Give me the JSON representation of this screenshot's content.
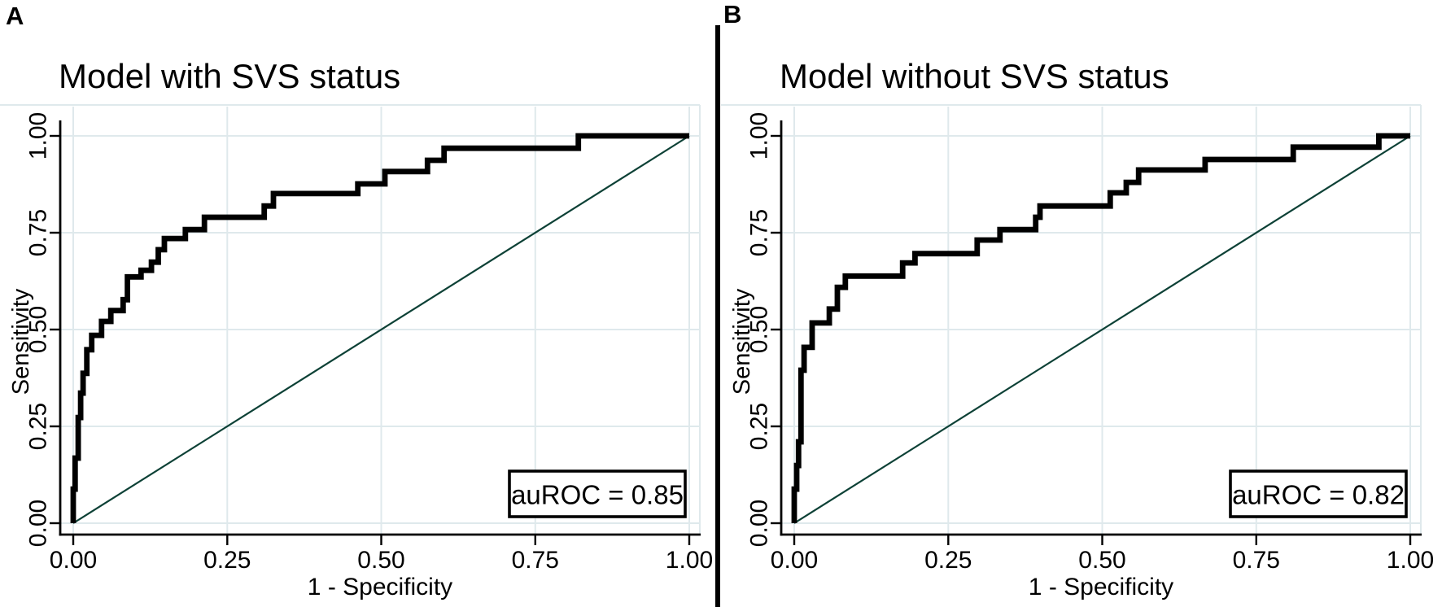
{
  "figure": {
    "background": "#ffffff",
    "panels": [
      {
        "letter": "A",
        "title": "Model with SVS status",
        "annotation": "auROC = 0.85"
      },
      {
        "letter": "B",
        "title": "Model without SVS status",
        "annotation": "auROC = 0.82"
      }
    ]
  },
  "colors": {
    "curve": "#000000",
    "reference_line": "#0d4136",
    "grid": "#dfe9ec",
    "axis": "#000000",
    "text": "#000000",
    "annotation_box_fill": "#ffffff",
    "annotation_box_border": "#000000",
    "background": "#ffffff"
  },
  "chart_data": [
    {
      "type": "line",
      "panel": "A",
      "title": "Model with SVS status",
      "xlabel": "1 - Specificity",
      "ylabel": "Sensitivity",
      "xlim": [
        0,
        1
      ],
      "ylim": [
        0,
        1
      ],
      "xtick_labels": [
        "0.00",
        "0.25",
        "0.50",
        "0.75",
        "1.00"
      ],
      "ytick_labels": [
        "0.00",
        "0.25",
        "0.50",
        "0.75",
        "1.00"
      ],
      "grid": true,
      "legend": "none",
      "annotation": "auROC = 0.85",
      "auROC": 0.85,
      "reference_line": {
        "from": [
          0,
          0
        ],
        "to": [
          1,
          1
        ]
      },
      "series": [
        {
          "name": "ROC curve",
          "points": [
            [
              0,
              0
            ],
            [
              0,
              0.088
            ],
            [
              0.003,
              0.088
            ],
            [
              0.003,
              0.168
            ],
            [
              0.008,
              0.168
            ],
            [
              0.008,
              0.273
            ],
            [
              0.012,
              0.273
            ],
            [
              0.012,
              0.336
            ],
            [
              0.016,
              0.336
            ],
            [
              0.016,
              0.387
            ],
            [
              0.022,
              0.387
            ],
            [
              0.022,
              0.448
            ],
            [
              0.03,
              0.448
            ],
            [
              0.03,
              0.485
            ],
            [
              0.046,
              0.485
            ],
            [
              0.046,
              0.521
            ],
            [
              0.061,
              0.521
            ],
            [
              0.061,
              0.549
            ],
            [
              0.081,
              0.549
            ],
            [
              0.081,
              0.577
            ],
            [
              0.088,
              0.577
            ],
            [
              0.088,
              0.636
            ],
            [
              0.11,
              0.636
            ],
            [
              0.11,
              0.653
            ],
            [
              0.127,
              0.653
            ],
            [
              0.127,
              0.674
            ],
            [
              0.138,
              0.674
            ],
            [
              0.138,
              0.706
            ],
            [
              0.148,
              0.706
            ],
            [
              0.148,
              0.735
            ],
            [
              0.182,
              0.735
            ],
            [
              0.182,
              0.758
            ],
            [
              0.213,
              0.758
            ],
            [
              0.213,
              0.79
            ],
            [
              0.31,
              0.79
            ],
            [
              0.31,
              0.819
            ],
            [
              0.325,
              0.819
            ],
            [
              0.325,
              0.851
            ],
            [
              0.462,
              0.851
            ],
            [
              0.462,
              0.876
            ],
            [
              0.506,
              0.876
            ],
            [
              0.506,
              0.908
            ],
            [
              0.575,
              0.908
            ],
            [
              0.575,
              0.937
            ],
            [
              0.602,
              0.937
            ],
            [
              0.602,
              0.968
            ],
            [
              0.82,
              0.968
            ],
            [
              0.82,
              1
            ],
            [
              1,
              1
            ]
          ]
        }
      ]
    },
    {
      "type": "line",
      "panel": "B",
      "title": "Model without SVS status",
      "xlabel": "1 - Specificity",
      "ylabel": "Sensitivity",
      "xlim": [
        0,
        1
      ],
      "ylim": [
        0,
        1
      ],
      "xtick_labels": [
        "0.00",
        "0.25",
        "0.50",
        "0.75",
        "1.00"
      ],
      "ytick_labels": [
        "0.00",
        "0.25",
        "0.50",
        "0.75",
        "1.00"
      ],
      "grid": true,
      "legend": "none",
      "annotation": "auROC = 0.82",
      "auROC": 0.82,
      "reference_line": {
        "from": [
          0,
          0
        ],
        "to": [
          1,
          1
        ]
      },
      "series": [
        {
          "name": "ROC curve",
          "points": [
            [
              0,
              0
            ],
            [
              0,
              0.088
            ],
            [
              0.004,
              0.088
            ],
            [
              0.004,
              0.149
            ],
            [
              0.007,
              0.149
            ],
            [
              0.007,
              0.21
            ],
            [
              0.011,
              0.21
            ],
            [
              0.011,
              0.395
            ],
            [
              0.016,
              0.395
            ],
            [
              0.016,
              0.454
            ],
            [
              0.029,
              0.454
            ],
            [
              0.029,
              0.517
            ],
            [
              0.057,
              0.517
            ],
            [
              0.057,
              0.553
            ],
            [
              0.07,
              0.553
            ],
            [
              0.07,
              0.609
            ],
            [
              0.083,
              0.609
            ],
            [
              0.083,
              0.638
            ],
            [
              0.176,
              0.638
            ],
            [
              0.176,
              0.672
            ],
            [
              0.196,
              0.672
            ],
            [
              0.196,
              0.696
            ],
            [
              0.297,
              0.696
            ],
            [
              0.297,
              0.731
            ],
            [
              0.334,
              0.731
            ],
            [
              0.334,
              0.758
            ],
            [
              0.392,
              0.758
            ],
            [
              0.392,
              0.79
            ],
            [
              0.399,
              0.79
            ],
            [
              0.399,
              0.819
            ],
            [
              0.513,
              0.819
            ],
            [
              0.513,
              0.853
            ],
            [
              0.539,
              0.853
            ],
            [
              0.539,
              0.88
            ],
            [
              0.559,
              0.88
            ],
            [
              0.559,
              0.912
            ],
            [
              0.667,
              0.912
            ],
            [
              0.667,
              0.939
            ],
            [
              0.81,
              0.939
            ],
            [
              0.81,
              0.971
            ],
            [
              0.949,
              0.971
            ],
            [
              0.949,
              1
            ],
            [
              1,
              1
            ]
          ]
        }
      ]
    }
  ]
}
